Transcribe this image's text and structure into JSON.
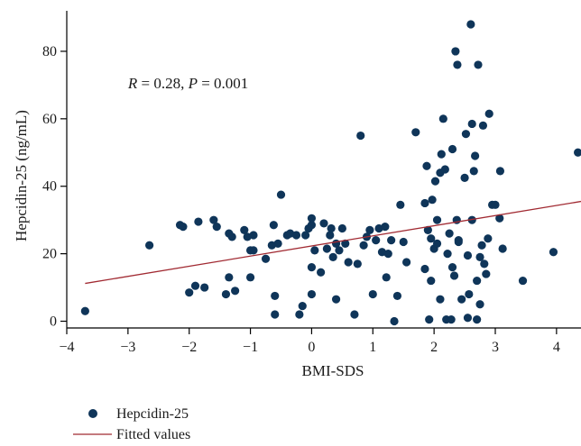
{
  "chart_data": {
    "type": "scatter",
    "xlabel": "BMI-SDS",
    "ylabel": "Hepcidin-25 (ng/mL)",
    "xlim": [
      -4.0,
      4.4
    ],
    "ylim": [
      -2,
      92
    ],
    "xticks": [
      "-4",
      "-3",
      "-2",
      "-1",
      "0",
      "1",
      "2",
      "3",
      "4"
    ],
    "xtick_values": [
      -4,
      -3,
      -2,
      -1,
      0,
      1,
      2,
      3,
      4
    ],
    "yticks": [
      "0",
      "20",
      "40",
      "60",
      "80"
    ],
    "ytick_values": [
      0,
      20,
      40,
      60,
      80
    ],
    "grid": false,
    "legend_placement": "bottom-left",
    "annotation": {
      "parts": [
        {
          "text": "R",
          "italic": true
        },
        {
          "text": " = 0.28, ",
          "italic": false
        },
        {
          "text": "P",
          "italic": true
        },
        {
          "text": " = 0.001",
          "italic": false
        }
      ],
      "x": -3.0,
      "y": 69
    },
    "colors": {
      "points": "#0f3559",
      "fit_line": "#a12a32",
      "axis": "#000000"
    },
    "legend": [
      {
        "label": "Hepcidin-25",
        "symbol": "point"
      },
      {
        "label": "Fitted values",
        "symbol": "line"
      }
    ],
    "series": [
      {
        "name": "Hepcidin-25",
        "kind": "scatter",
        "points": [
          [
            -3.7,
            3
          ],
          [
            -2.65,
            22.5
          ],
          [
            -2.15,
            28.5
          ],
          [
            -2.1,
            28
          ],
          [
            -2.0,
            8.5
          ],
          [
            -1.9,
            10.5
          ],
          [
            -1.85,
            29.5
          ],
          [
            -1.75,
            10
          ],
          [
            -1.6,
            30
          ],
          [
            -1.55,
            28
          ],
          [
            -1.4,
            8
          ],
          [
            -1.35,
            13
          ],
          [
            -1.35,
            26
          ],
          [
            -1.3,
            25
          ],
          [
            -1.25,
            9
          ],
          [
            -1.1,
            27
          ],
          [
            -1.05,
            25
          ],
          [
            -1.0,
            13
          ],
          [
            -1.0,
            21
          ],
          [
            -0.95,
            21
          ],
          [
            -0.95,
            25.5
          ],
          [
            -0.75,
            18.5
          ],
          [
            -0.65,
            22.5
          ],
          [
            -0.62,
            28.5
          ],
          [
            -0.6,
            2
          ],
          [
            -0.6,
            7.5
          ],
          [
            -0.55,
            23
          ],
          [
            -0.5,
            37.5
          ],
          [
            -0.4,
            25.5
          ],
          [
            -0.35,
            26
          ],
          [
            -0.25,
            25.5
          ],
          [
            -0.2,
            2
          ],
          [
            -0.15,
            4.5
          ],
          [
            -0.1,
            25.5
          ],
          [
            -0.05,
            27.5
          ],
          [
            0.0,
            28.5
          ],
          [
            0.0,
            30.5
          ],
          [
            0.0,
            8
          ],
          [
            0.0,
            16
          ],
          [
            0.05,
            21
          ],
          [
            0.15,
            14.5
          ],
          [
            0.2,
            29
          ],
          [
            0.25,
            21.5
          ],
          [
            0.3,
            25.5
          ],
          [
            0.32,
            27.5
          ],
          [
            0.35,
            19
          ],
          [
            0.4,
            23
          ],
          [
            0.4,
            6.5
          ],
          [
            0.45,
            21
          ],
          [
            0.5,
            27.5
          ],
          [
            0.55,
            23
          ],
          [
            0.6,
            17.5
          ],
          [
            0.7,
            2
          ],
          [
            0.75,
            17
          ],
          [
            0.8,
            55
          ],
          [
            0.85,
            22.5
          ],
          [
            0.9,
            25
          ],
          [
            0.95,
            27
          ],
          [
            1.0,
            8
          ],
          [
            1.05,
            24
          ],
          [
            1.1,
            27.5
          ],
          [
            1.15,
            20.5
          ],
          [
            1.2,
            28
          ],
          [
            1.22,
            13
          ],
          [
            1.25,
            20
          ],
          [
            1.3,
            24
          ],
          [
            1.35,
            0
          ],
          [
            1.4,
            7.5
          ],
          [
            1.45,
            34.5
          ],
          [
            1.5,
            23.5
          ],
          [
            1.55,
            17.5
          ],
          [
            1.7,
            56
          ],
          [
            1.85,
            35
          ],
          [
            1.85,
            15.5
          ],
          [
            1.88,
            46
          ],
          [
            1.9,
            27
          ],
          [
            1.92,
            0.5
          ],
          [
            1.95,
            24.5
          ],
          [
            1.95,
            12
          ],
          [
            1.97,
            36
          ],
          [
            2.0,
            21.5
          ],
          [
            2.02,
            41.5
          ],
          [
            2.05,
            30
          ],
          [
            2.05,
            23
          ],
          [
            2.1,
            6.5
          ],
          [
            2.1,
            44
          ],
          [
            2.12,
            49.5
          ],
          [
            2.15,
            60
          ],
          [
            2.18,
            45
          ],
          [
            2.2,
            0.5
          ],
          [
            2.22,
            20
          ],
          [
            2.25,
            26
          ],
          [
            2.28,
            0.5
          ],
          [
            2.3,
            16
          ],
          [
            2.3,
            51
          ],
          [
            2.33,
            13.5
          ],
          [
            2.35,
            80
          ],
          [
            2.37,
            30
          ],
          [
            2.38,
            76
          ],
          [
            2.4,
            24
          ],
          [
            2.4,
            23.5
          ],
          [
            2.45,
            6.5
          ],
          [
            2.5,
            42.5
          ],
          [
            2.52,
            55.5
          ],
          [
            2.55,
            19.5
          ],
          [
            2.55,
            1
          ],
          [
            2.57,
            8
          ],
          [
            2.6,
            88
          ],
          [
            2.62,
            58.5
          ],
          [
            2.62,
            30
          ],
          [
            2.65,
            44.5
          ],
          [
            2.67,
            49
          ],
          [
            2.7,
            0.5
          ],
          [
            2.7,
            12
          ],
          [
            2.72,
            76
          ],
          [
            2.75,
            19
          ],
          [
            2.75,
            5
          ],
          [
            2.78,
            22.5
          ],
          [
            2.8,
            58
          ],
          [
            2.82,
            17
          ],
          [
            2.85,
            14
          ],
          [
            2.88,
            24.5
          ],
          [
            2.9,
            61.5
          ],
          [
            2.95,
            34.5
          ],
          [
            3.0,
            34.5
          ],
          [
            3.07,
            30.5
          ],
          [
            3.08,
            44.5
          ],
          [
            3.12,
            21.5
          ],
          [
            3.45,
            12
          ],
          [
            3.95,
            20.5
          ],
          [
            4.35,
            50
          ]
        ]
      },
      {
        "name": "Fitted values",
        "kind": "line",
        "points": [
          [
            -3.7,
            11.2
          ],
          [
            4.4,
            35.5
          ]
        ]
      }
    ]
  }
}
